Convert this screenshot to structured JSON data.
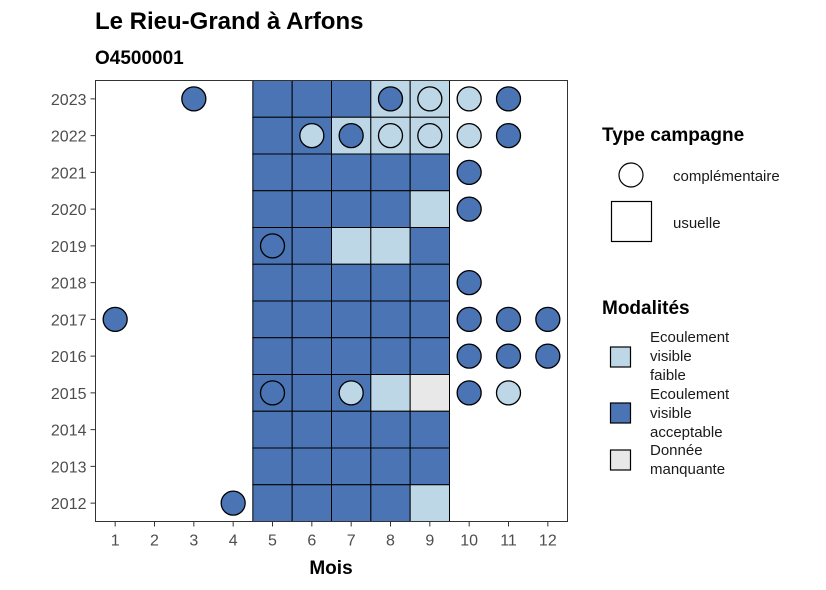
{
  "chart_data": {
    "type": "heatmap",
    "title": "Le Rieu-Grand à Arfons",
    "subtitle": "O4500001",
    "xlabel": "Mois",
    "ylabel": "",
    "x_ticks": [
      1,
      2,
      3,
      4,
      5,
      6,
      7,
      8,
      9,
      10,
      11,
      12
    ],
    "y_ticks": [
      2012,
      2013,
      2014,
      2015,
      2016,
      2017,
      2018,
      2019,
      2020,
      2021,
      2022,
      2023
    ],
    "xlim": [
      0.5,
      12.5
    ],
    "ylim": [
      2011.5,
      2023.5
    ],
    "grid": false,
    "legend_position": "right",
    "colors": {
      "faible": "#bdd7e7",
      "acceptable": "#4a74b4",
      "manquante": "#e8e8e8"
    },
    "legend_type": {
      "title": "Type campagne",
      "items": [
        {
          "shape": "circle",
          "label": "complémentaire"
        },
        {
          "shape": "square",
          "label": "usuelle"
        }
      ]
    },
    "legend_modalites": {
      "title": "Modalités",
      "items": [
        {
          "key": "faible",
          "label_lines": [
            "Ecoulement",
            "visible",
            "faible"
          ]
        },
        {
          "key": "acceptable",
          "label_lines": [
            "Ecoulement",
            "visible",
            "acceptable"
          ]
        },
        {
          "key": "manquante",
          "label_lines": [
            "Donnée",
            "manquante"
          ]
        }
      ]
    },
    "usuelle": [
      {
        "year": 2023,
        "month": 5,
        "modalite": "acceptable"
      },
      {
        "year": 2023,
        "month": 6,
        "modalite": "acceptable"
      },
      {
        "year": 2023,
        "month": 7,
        "modalite": "acceptable"
      },
      {
        "year": 2023,
        "month": 8,
        "modalite": "faible"
      },
      {
        "year": 2023,
        "month": 9,
        "modalite": "faible"
      },
      {
        "year": 2022,
        "month": 5,
        "modalite": "acceptable"
      },
      {
        "year": 2022,
        "month": 6,
        "modalite": "acceptable"
      },
      {
        "year": 2022,
        "month": 7,
        "modalite": "faible"
      },
      {
        "year": 2022,
        "month": 8,
        "modalite": "faible"
      },
      {
        "year": 2022,
        "month": 9,
        "modalite": "faible"
      },
      {
        "year": 2021,
        "month": 5,
        "modalite": "acceptable"
      },
      {
        "year": 2021,
        "month": 6,
        "modalite": "acceptable"
      },
      {
        "year": 2021,
        "month": 7,
        "modalite": "acceptable"
      },
      {
        "year": 2021,
        "month": 8,
        "modalite": "acceptable"
      },
      {
        "year": 2021,
        "month": 9,
        "modalite": "acceptable"
      },
      {
        "year": 2020,
        "month": 5,
        "modalite": "acceptable"
      },
      {
        "year": 2020,
        "month": 6,
        "modalite": "acceptable"
      },
      {
        "year": 2020,
        "month": 7,
        "modalite": "acceptable"
      },
      {
        "year": 2020,
        "month": 8,
        "modalite": "acceptable"
      },
      {
        "year": 2020,
        "month": 9,
        "modalite": "faible"
      },
      {
        "year": 2019,
        "month": 5,
        "modalite": "acceptable"
      },
      {
        "year": 2019,
        "month": 6,
        "modalite": "acceptable"
      },
      {
        "year": 2019,
        "month": 7,
        "modalite": "faible"
      },
      {
        "year": 2019,
        "month": 8,
        "modalite": "faible"
      },
      {
        "year": 2019,
        "month": 9,
        "modalite": "acceptable"
      },
      {
        "year": 2018,
        "month": 5,
        "modalite": "acceptable"
      },
      {
        "year": 2018,
        "month": 6,
        "modalite": "acceptable"
      },
      {
        "year": 2018,
        "month": 7,
        "modalite": "acceptable"
      },
      {
        "year": 2018,
        "month": 8,
        "modalite": "acceptable"
      },
      {
        "year": 2018,
        "month": 9,
        "modalite": "acceptable"
      },
      {
        "year": 2017,
        "month": 5,
        "modalite": "acceptable"
      },
      {
        "year": 2017,
        "month": 6,
        "modalite": "acceptable"
      },
      {
        "year": 2017,
        "month": 7,
        "modalite": "acceptable"
      },
      {
        "year": 2017,
        "month": 8,
        "modalite": "acceptable"
      },
      {
        "year": 2017,
        "month": 9,
        "modalite": "acceptable"
      },
      {
        "year": 2016,
        "month": 5,
        "modalite": "acceptable"
      },
      {
        "year": 2016,
        "month": 6,
        "modalite": "acceptable"
      },
      {
        "year": 2016,
        "month": 7,
        "modalite": "acceptable"
      },
      {
        "year": 2016,
        "month": 8,
        "modalite": "acceptable"
      },
      {
        "year": 2016,
        "month": 9,
        "modalite": "acceptable"
      },
      {
        "year": 2015,
        "month": 5,
        "modalite": "acceptable"
      },
      {
        "year": 2015,
        "month": 6,
        "modalite": "acceptable"
      },
      {
        "year": 2015,
        "month": 7,
        "modalite": "acceptable"
      },
      {
        "year": 2015,
        "month": 8,
        "modalite": "faible"
      },
      {
        "year": 2015,
        "month": 9,
        "modalite": "manquante"
      },
      {
        "year": 2014,
        "month": 5,
        "modalite": "acceptable"
      },
      {
        "year": 2014,
        "month": 6,
        "modalite": "acceptable"
      },
      {
        "year": 2014,
        "month": 7,
        "modalite": "acceptable"
      },
      {
        "year": 2014,
        "month": 8,
        "modalite": "acceptable"
      },
      {
        "year": 2014,
        "month": 9,
        "modalite": "acceptable"
      },
      {
        "year": 2013,
        "month": 5,
        "modalite": "acceptable"
      },
      {
        "year": 2013,
        "month": 6,
        "modalite": "acceptable"
      },
      {
        "year": 2013,
        "month": 7,
        "modalite": "acceptable"
      },
      {
        "year": 2013,
        "month": 8,
        "modalite": "acceptable"
      },
      {
        "year": 2013,
        "month": 9,
        "modalite": "acceptable"
      },
      {
        "year": 2012,
        "month": 5,
        "modalite": "acceptable"
      },
      {
        "year": 2012,
        "month": 6,
        "modalite": "acceptable"
      },
      {
        "year": 2012,
        "month": 7,
        "modalite": "acceptable"
      },
      {
        "year": 2012,
        "month": 8,
        "modalite": "acceptable"
      },
      {
        "year": 2012,
        "month": 9,
        "modalite": "faible"
      }
    ],
    "complementaire": [
      {
        "year": 2023,
        "month": 3,
        "modalite": "acceptable"
      },
      {
        "year": 2023,
        "month": 8,
        "modalite": "acceptable"
      },
      {
        "year": 2023,
        "month": 9,
        "modalite": "faible"
      },
      {
        "year": 2023,
        "month": 10,
        "modalite": "faible"
      },
      {
        "year": 2023,
        "month": 11,
        "modalite": "acceptable"
      },
      {
        "year": 2022,
        "month": 6,
        "modalite": "faible"
      },
      {
        "year": 2022,
        "month": 7,
        "modalite": "acceptable"
      },
      {
        "year": 2022,
        "month": 8,
        "modalite": "faible"
      },
      {
        "year": 2022,
        "month": 9,
        "modalite": "faible"
      },
      {
        "year": 2022,
        "month": 10,
        "modalite": "faible"
      },
      {
        "year": 2022,
        "month": 11,
        "modalite": "acceptable"
      },
      {
        "year": 2021,
        "month": 10,
        "modalite": "acceptable"
      },
      {
        "year": 2020,
        "month": 10,
        "modalite": "acceptable"
      },
      {
        "year": 2019,
        "month": 5,
        "modalite": "acceptable"
      },
      {
        "year": 2018,
        "month": 10,
        "modalite": "acceptable"
      },
      {
        "year": 2017,
        "month": 1,
        "modalite": "acceptable"
      },
      {
        "year": 2017,
        "month": 10,
        "modalite": "acceptable"
      },
      {
        "year": 2017,
        "month": 11,
        "modalite": "acceptable"
      },
      {
        "year": 2017,
        "month": 12,
        "modalite": "acceptable"
      },
      {
        "year": 2016,
        "month": 10,
        "modalite": "acceptable"
      },
      {
        "year": 2016,
        "month": 11,
        "modalite": "acceptable"
      },
      {
        "year": 2016,
        "month": 12,
        "modalite": "acceptable"
      },
      {
        "year": 2015,
        "month": 5,
        "modalite": "acceptable"
      },
      {
        "year": 2015,
        "month": 7,
        "modalite": "faible"
      },
      {
        "year": 2015,
        "month": 10,
        "modalite": "acceptable"
      },
      {
        "year": 2015,
        "month": 11,
        "modalite": "faible"
      },
      {
        "year": 2012,
        "month": 4,
        "modalite": "acceptable"
      }
    ]
  }
}
